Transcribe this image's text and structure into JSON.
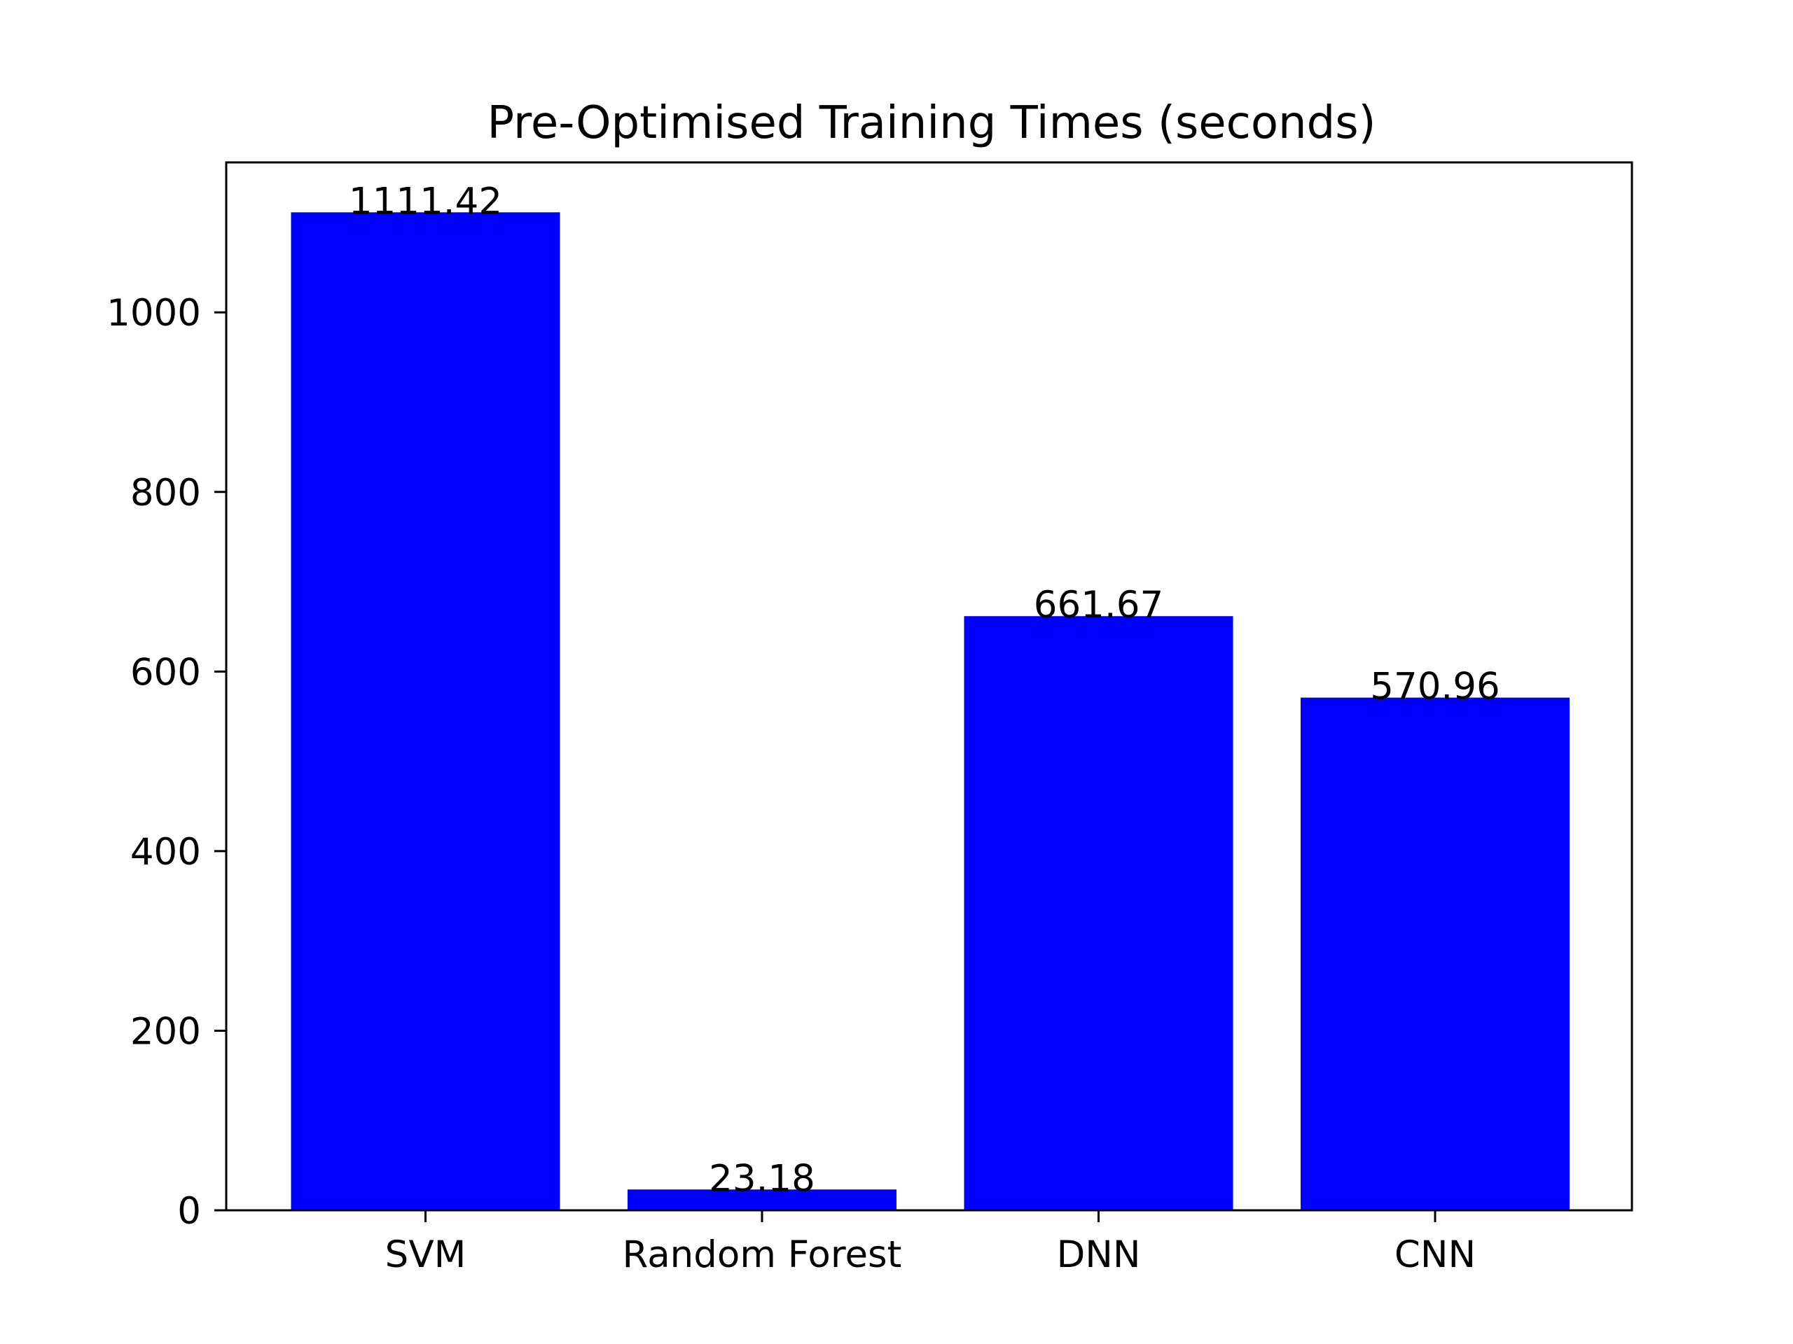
{
  "chart_data": {
    "type": "bar",
    "title": "Pre-Optimised Training Times (seconds)",
    "xlabel": "",
    "ylabel": "",
    "categories": [
      "SVM",
      "Random Forest",
      "DNN",
      "CNN"
    ],
    "values": [
      1111.42,
      23.18,
      661.67,
      570.96
    ],
    "value_labels": [
      "1111.42",
      "23.18",
      "661.67",
      "570.96"
    ],
    "ylim": [
      0,
      1167
    ],
    "yticks": [
      0,
      200,
      400,
      600,
      800,
      1000
    ],
    "grid": false,
    "legend": "none",
    "bar_color": "#0000ff"
  }
}
